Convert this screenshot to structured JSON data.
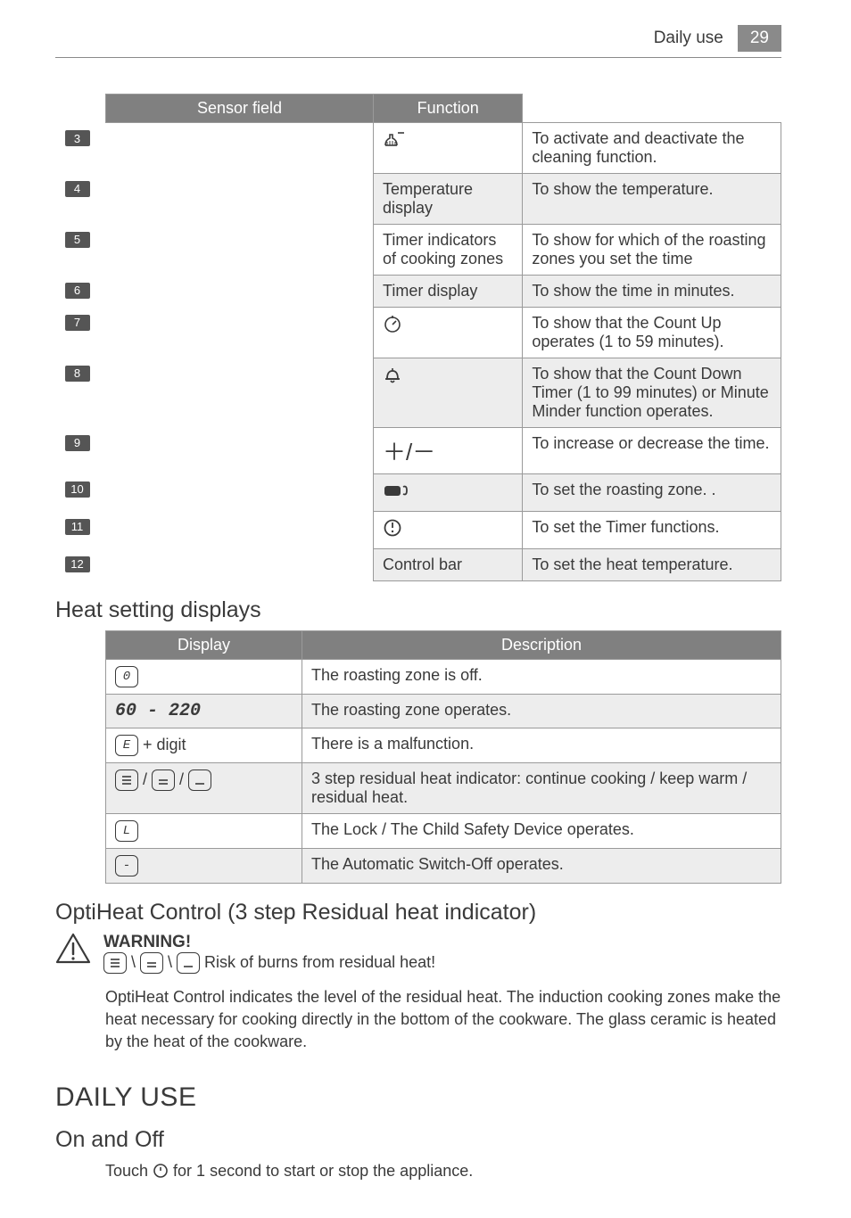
{
  "header": {
    "section": "Daily use",
    "page": "29"
  },
  "table1": {
    "headers": [
      "Sensor field",
      "Function"
    ],
    "rows": [
      {
        "num": "3",
        "sensor_icon": "clean",
        "sensor_text": "",
        "function": "To activate and deactivate the cleaning function.",
        "shade": false
      },
      {
        "num": "4",
        "sensor_icon": "",
        "sensor_text": "Temperature display",
        "function": "To show the temperature.",
        "shade": true
      },
      {
        "num": "5",
        "sensor_icon": "",
        "sensor_text": "Timer indicators of cooking zones",
        "function": "To show for which of the roasting zones you set the time",
        "shade": false
      },
      {
        "num": "6",
        "sensor_icon": "",
        "sensor_text": "Timer display",
        "function": "To show the time in minutes.",
        "shade": true
      },
      {
        "num": "7",
        "sensor_icon": "countup",
        "sensor_text": "",
        "function": "To show that the Count Up operates (1 to 59 minutes).",
        "shade": false
      },
      {
        "num": "8",
        "sensor_icon": "bell",
        "sensor_text": "",
        "function": "To show that the Count Down Timer (1 to 99 minutes) or Minute Minder function operates.",
        "shade": true
      },
      {
        "num": "9",
        "sensor_icon": "plusminus",
        "sensor_text": "",
        "function": "To increase or decrease the time.",
        "shade": false
      },
      {
        "num": "10",
        "sensor_icon": "roast",
        "sensor_text": "",
        "function": "To set the roasting zone. .",
        "shade": true
      },
      {
        "num": "11",
        "sensor_icon": "timer",
        "sensor_text": "",
        "function": "To set the Timer functions.",
        "shade": false
      },
      {
        "num": "12",
        "sensor_icon": "",
        "sensor_text": "Control bar",
        "function": "To set the heat temperature.",
        "shade": true
      }
    ]
  },
  "heat_heading": "Heat setting displays",
  "table2": {
    "headers": [
      "Display",
      "Description"
    ],
    "rows": [
      {
        "display_html": "box0",
        "description": "The roasting zone is off.",
        "shade": false
      },
      {
        "display_html": "range",
        "range_text": "60 - 220",
        "description": "The roasting zone operates.",
        "shade": true
      },
      {
        "display_html": "edigit",
        "e_suffix": " + digit",
        "description": "There is a malfunction.",
        "shade": false
      },
      {
        "display_html": "threebox",
        "description": "3 step residual heat indicator: continue cooking / keep warm / residual heat.",
        "shade": true
      },
      {
        "display_html": "boxL",
        "description": "The Lock / The Child Safety Device operates.",
        "shade": false
      },
      {
        "display_html": "boxdash",
        "description": "The Automatic Switch-Off operates.",
        "shade": true
      }
    ]
  },
  "opti_heading": "OptiHeat Control (3 step Residual heat indicator)",
  "warning": {
    "title": "WARNING!",
    "text_suffix": " Risk of burns from residual heat!"
  },
  "opti_body": "OptiHeat Control indicates the level of the residual heat. The induction cooking zones make the heat necessary for cooking directly in the bottom of the cookware. The glass ceramic is heated by the heat of the cookware.",
  "daily_use_h1": "DAILY USE",
  "on_off_h2": "On and Off",
  "on_off_text_prefix": "Touch ",
  "on_off_text_suffix": " for 1 second to start or stop the appliance."
}
